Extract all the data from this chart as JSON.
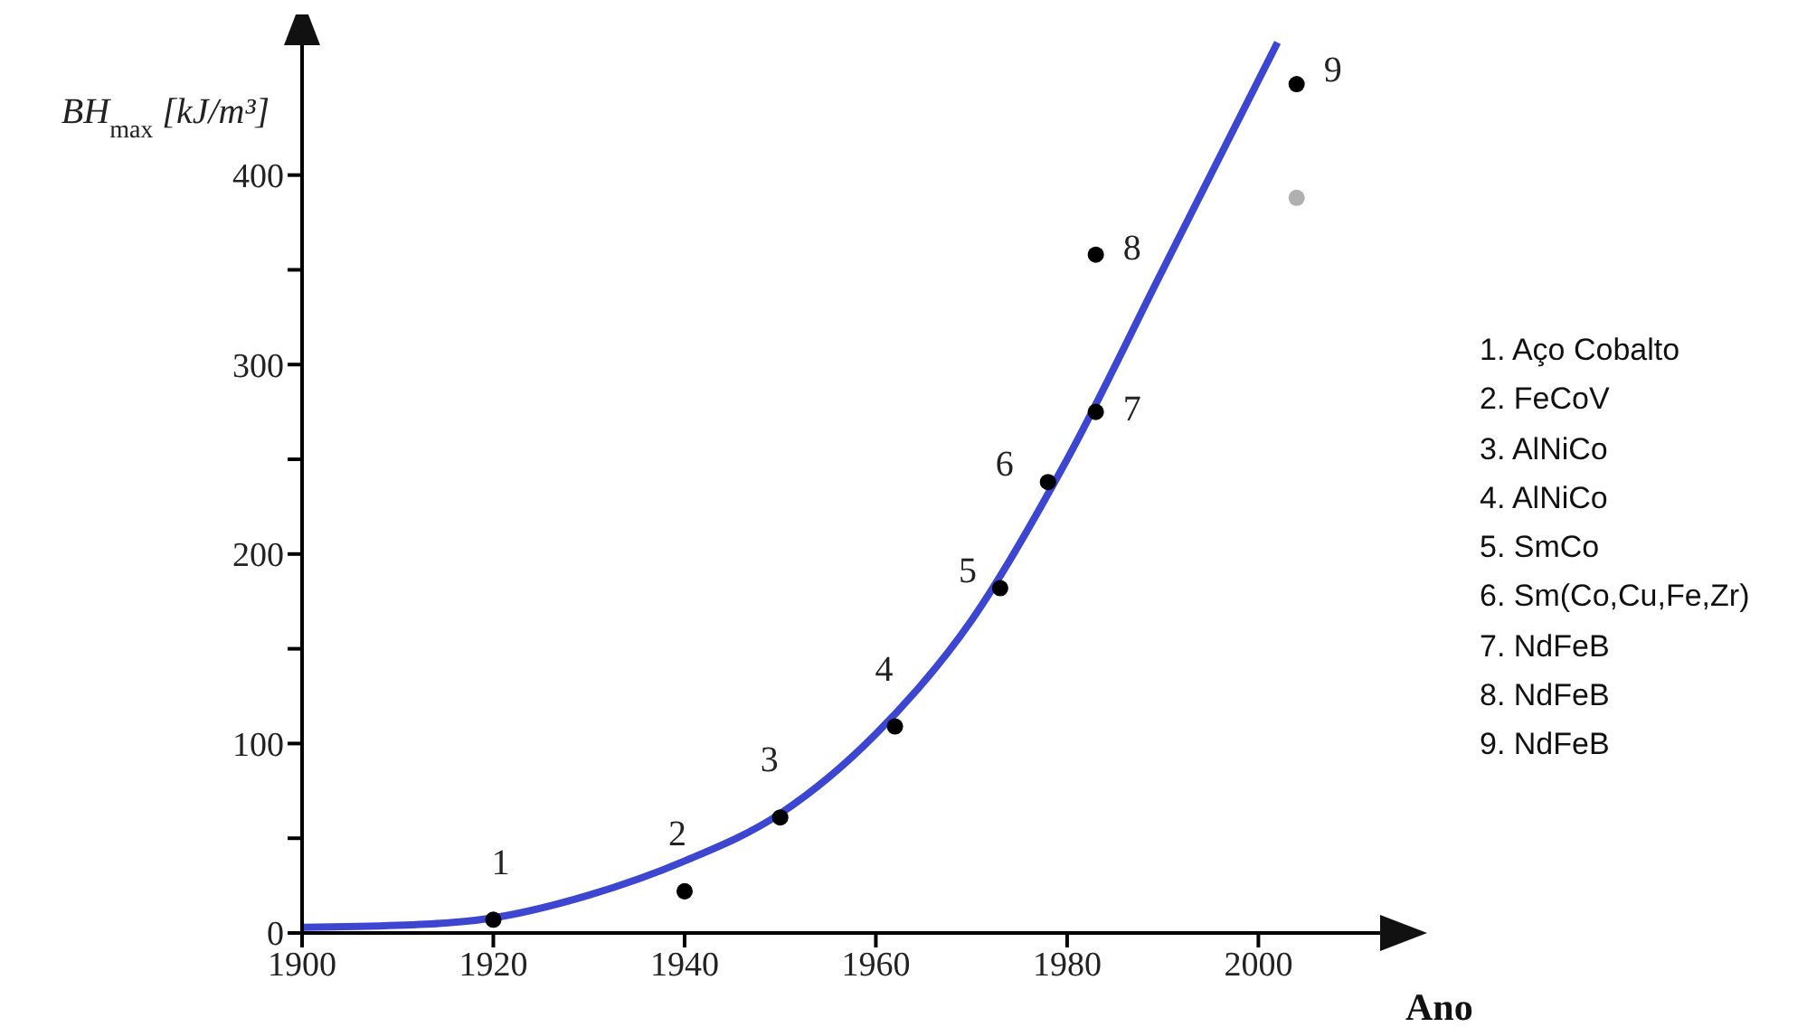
{
  "chart_data": {
    "type": "scatter",
    "xlabel": "Ano",
    "ylabel": "BH$_{max}$ [kJ/m³]",
    "xlim": [
      1900,
      2015
    ],
    "xticks": [
      1900,
      1920,
      1940,
      1960,
      1980,
      2000
    ],
    "ylim": [
      0,
      480
    ],
    "yticks": [
      0,
      {
        "value": 50,
        "label": null
      },
      100,
      {
        "value": 150,
        "label": null
      },
      200,
      {
        "value": 250,
        "label": null
      },
      300,
      {
        "value": 350,
        "label": null
      },
      400
    ],
    "grid": false,
    "legend": false,
    "marker": "circle",
    "series": [
      {
        "type": "line",
        "color": "#3c46d0",
        "marker": "none",
        "x": [
          1900,
          1910,
          1920,
          1930,
          1940,
          1950,
          1960,
          1970,
          1980,
          1990,
          2002
        ],
        "values": [
          3,
          4,
          8,
          20,
          38,
          63,
          105,
          165,
          250,
          350,
          470
        ]
      },
      {
        "color": "#000000",
        "x": [
          1920,
          1940,
          1950,
          1962,
          1973,
          1978,
          1983,
          1983,
          2004
        ],
        "values": [
          7,
          22,
          61,
          109,
          182,
          238,
          275,
          358,
          448
        ]
      },
      {
        "color": "#b0b0b0",
        "x": [
          2004
        ],
        "values": [
          388
        ]
      }
    ],
    "annotations": [
      {
        "text": "1",
        "x": 1920,
        "y": 7
      },
      {
        "text": "2",
        "x": 1940,
        "y": 22
      },
      {
        "text": "3",
        "x": 1950,
        "y": 61
      },
      {
        "text": "4",
        "x": 1962,
        "y": 109
      },
      {
        "text": "5",
        "x": 1973,
        "y": 182
      },
      {
        "text": "6",
        "x": 1978,
        "y": 238
      },
      {
        "text": "7",
        "x": 1983,
        "y": 275
      },
      {
        "text": "8",
        "x": 1983,
        "y": 358
      },
      {
        "text": "9",
        "x": 2004,
        "y": 448
      },
      "1. Aço Cobalto",
      "2. FeCoV",
      "3. AlNiCo",
      "4. AlNiCo",
      "5. SmCo",
      "6. Sm(Co,Cu,Fe,Zr)",
      "7. NdFeB",
      "8. NdFeB",
      "9. NdFeB"
    ]
  }
}
